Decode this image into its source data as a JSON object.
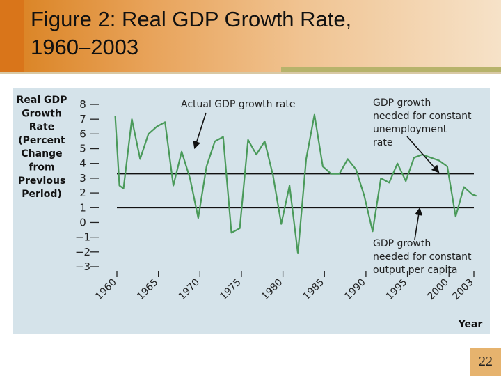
{
  "slide": {
    "title_line1": "Figure 2:  Real GDP Growth Rate,",
    "title_line2": "1960–2003",
    "page_number": "22"
  },
  "chart_data": {
    "type": "line",
    "ylabel": [
      "Real GDP",
      "Growth",
      "Rate",
      "(Percent",
      "Change",
      "from",
      "Previous",
      "Period)"
    ],
    "xlabel": "Year",
    "ylim": [
      -3,
      8
    ],
    "xlim": [
      1960,
      2003
    ],
    "y_ticks": [
      "8",
      "7",
      "6",
      "5",
      "4",
      "3",
      "2",
      "1",
      "0",
      "−1",
      "−2",
      "−3"
    ],
    "y_tick_values": [
      8,
      7,
      6,
      5,
      4,
      3,
      2,
      1,
      0,
      -1,
      -2,
      -3
    ],
    "x_ticks": [
      "1960",
      "1965",
      "1970",
      "1975",
      "1980",
      "1985",
      "1990",
      "1995",
      "2000",
      "2003"
    ],
    "x_tick_values": [
      1960,
      1965,
      1970,
      1975,
      1980,
      1985,
      1990,
      1995,
      2000,
      2003
    ],
    "x": [
      1959.8,
      1960.3,
      1960.8,
      1961.8,
      1962.8,
      1963.8,
      1964.8,
      1965.8,
      1966.8,
      1967.8,
      1968.8,
      1969.8,
      1970.8,
      1971.8,
      1972.8,
      1973.8,
      1974.8,
      1975.8,
      1976.8,
      1977.8,
      1978.8,
      1979.8,
      1980.8,
      1981.8,
      1982.8,
      1983.8,
      1984.8,
      1985.8,
      1986.8,
      1987.8,
      1988.8,
      1989.8,
      1990.8,
      1991.8,
      1992.8,
      1993.8,
      1994.8,
      1995.8,
      1996.8,
      1997.8,
      1998.8,
      1999.8,
      2000.8,
      2001.8,
      2002.8,
      2003.3
    ],
    "series": [
      {
        "values": [
          7.2,
          2.5,
          2.3,
          7.0,
          4.3,
          6.0,
          6.5,
          6.8,
          2.5,
          4.8,
          3.0,
          0.3,
          3.8,
          5.5,
          5.8,
          -0.7,
          -0.4,
          5.6,
          4.6,
          5.5,
          3.2,
          -0.1,
          2.5,
          -2.1,
          4.3,
          7.3,
          3.8,
          3.3,
          3.3,
          4.3,
          3.6,
          1.8,
          -0.6,
          3.0,
          2.7,
          4.0,
          2.8,
          4.4,
          4.6,
          4.4,
          4.2,
          3.8,
          0.4,
          2.4,
          1.9,
          1.8
        ]
      }
    ],
    "reference_lines": [
      {
        "value": 3.3,
        "label": [
          "GDP growth",
          "needed for constant",
          "unemployment",
          "rate"
        ]
      },
      {
        "value": 1.0,
        "label": [
          "GDP growth",
          "needed for constant",
          "output per capita"
        ]
      }
    ],
    "annotation": "Actual GDP growth rate",
    "colors": {
      "line": "#4a9a5a",
      "panel": "#d5e3ea",
      "reference": "#111111"
    }
  }
}
